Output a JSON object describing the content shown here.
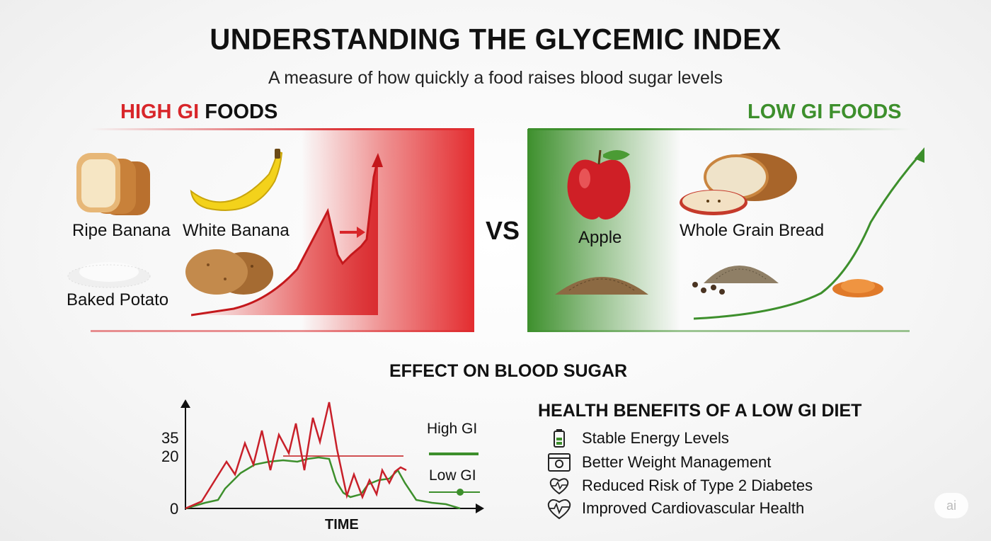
{
  "title": "UNDERSTANDING THE GLYCEMIC INDEX",
  "subtitle": "A measure of how quickly a food raises blood sugar levels",
  "high_gi": {
    "heading_accent": "HIGH GI",
    "heading_rest": " FOODS",
    "accent_color": "#d8262a",
    "foods": [
      "Ripe Banana",
      "White Banana",
      "Baked Potato"
    ]
  },
  "vs": "VS",
  "low_gi": {
    "heading": "LOW GI FOODS",
    "accent_color": "#3d8f2c",
    "foods": [
      "Apple",
      "Whole Grain Bread"
    ]
  },
  "effect": {
    "title": "EFFECT ON BLOOD SUGAR",
    "y_ticks": [
      "35",
      "20",
      "0"
    ],
    "x_label": "TIME",
    "legend": [
      {
        "label": "High GI",
        "color": "#3d8f2c"
      },
      {
        "label": "Low GI",
        "color": "#3d8f2c"
      }
    ]
  },
  "benefits": {
    "title": "HEALTH BENEFITS OF A LOW GI DIET",
    "items": [
      {
        "icon": "battery-icon",
        "text": "Stable Energy Levels"
      },
      {
        "icon": "scale-icon",
        "text": "Better Weight Management"
      },
      {
        "icon": "heart-pulse-icon",
        "text": "Reduced Risk of Type 2 Diabetes"
      },
      {
        "icon": "heart-ecg-icon",
        "text": "Improved Cardiovascular Health"
      }
    ]
  },
  "watermark": "ai"
}
